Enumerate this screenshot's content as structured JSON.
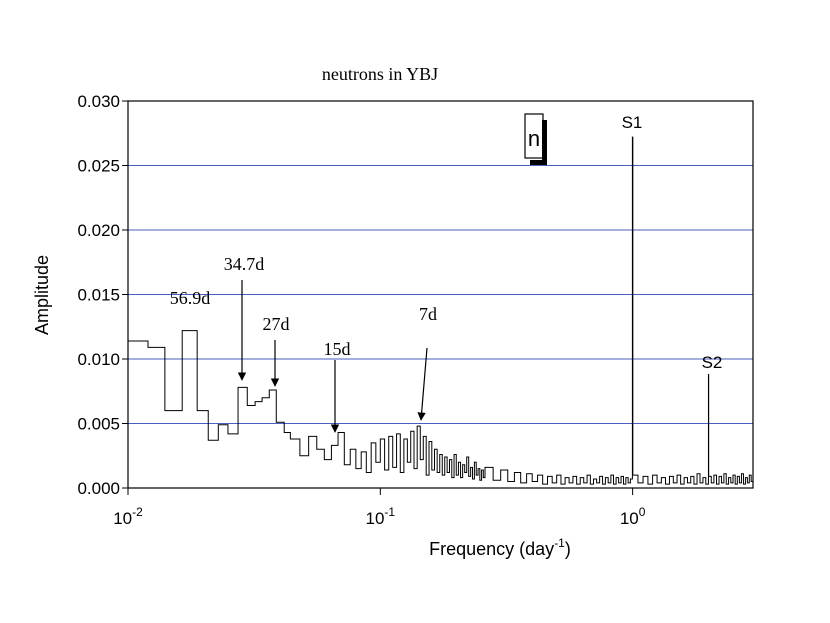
{
  "chart_data": {
    "type": "line",
    "drawstyle": "steps-post",
    "title": "neutrons in YBJ",
    "ylabel": "Amplitude",
    "xlabel": {
      "text": "Frequency (day",
      "superscript": "-1",
      "suffix": ")"
    },
    "inset_label": "n",
    "xscale": "log",
    "grid": true,
    "grid_color": "#4a5fc1",
    "xlim": [
      0.01,
      3
    ],
    "ylim": [
      0,
      0.03
    ],
    "xticks": [
      {
        "value": 0.01,
        "label": "10",
        "exponent": "-2"
      },
      {
        "value": 0.1,
        "label": "10",
        "exponent": "-1"
      },
      {
        "value": 1,
        "label": "10",
        "exponent": "0"
      }
    ],
    "yticks": [
      {
        "value": 0,
        "label": "0.000"
      },
      {
        "value": 0.005,
        "label": "0.005"
      },
      {
        "value": 0.01,
        "label": "0.010"
      },
      {
        "value": 0.015,
        "label": "0.015"
      },
      {
        "value": 0.02,
        "label": "0.020"
      },
      {
        "value": 0.025,
        "label": "0.025"
      },
      {
        "value": 0.03,
        "label": "0.030"
      }
    ],
    "annotations": [
      "56.9d",
      "34.7d",
      "27d",
      "15d",
      "7d",
      "S1",
      "S2"
    ],
    "series": [
      {
        "name": "neutrons",
        "color": "#000000",
        "x": [
          0.01,
          0.012,
          0.014,
          0.0164,
          0.0188,
          0.0208,
          0.0228,
          0.0249,
          0.0273,
          0.0297,
          0.0319,
          0.034,
          0.0363,
          0.0387,
          0.0416,
          0.044,
          0.048,
          0.052,
          0.056,
          0.06,
          0.064,
          0.068,
          0.072,
          0.076,
          0.08,
          0.084,
          0.088,
          0.092,
          0.096,
          0.1,
          0.104,
          0.108,
          0.112,
          0.116,
          0.12,
          0.124,
          0.128,
          0.132,
          0.136,
          0.14,
          0.144,
          0.148,
          0.152,
          0.156,
          0.16,
          0.164,
          0.168,
          0.172,
          0.176,
          0.18,
          0.184,
          0.188,
          0.192,
          0.196,
          0.2,
          0.204,
          0.208,
          0.212,
          0.216,
          0.22,
          0.224,
          0.228,
          0.232,
          0.236,
          0.24,
          0.244,
          0.248,
          0.252,
          0.256,
          0.26,
          0.28,
          0.3,
          0.32,
          0.34,
          0.36,
          0.38,
          0.4,
          0.42,
          0.44,
          0.46,
          0.48,
          0.5,
          0.52,
          0.54,
          0.56,
          0.58,
          0.6,
          0.62,
          0.64,
          0.66,
          0.68,
          0.7,
          0.72,
          0.74,
          0.76,
          0.78,
          0.8,
          0.82,
          0.84,
          0.86,
          0.88,
          0.9,
          0.92,
          0.94,
          0.96,
          0.98,
          0.998,
          1.002,
          1.05,
          1.1,
          1.15,
          1.2,
          1.25,
          1.3,
          1.35,
          1.4,
          1.45,
          1.5,
          1.55,
          1.6,
          1.65,
          1.7,
          1.75,
          1.8,
          1.85,
          1.9,
          1.95,
          1.998,
          2.002,
          2.05,
          2.1,
          2.15,
          2.2,
          2.25,
          2.3,
          2.35,
          2.4,
          2.45,
          2.5,
          2.55,
          2.6,
          2.65,
          2.7,
          2.75,
          2.8,
          2.85,
          2.9,
          2.95
        ],
        "values": [
          0.0114,
          0.0109,
          0.006,
          0.0122,
          0.006,
          0.0037,
          0.0049,
          0.0042,
          0.0078,
          0.0064,
          0.0067,
          0.007,
          0.0076,
          0.0051,
          0.0043,
          0.0038,
          0.0025,
          0.004,
          0.003,
          0.0022,
          0.0033,
          0.0043,
          0.0018,
          0.003,
          0.0015,
          0.0028,
          0.0012,
          0.0035,
          0.002,
          0.0038,
          0.0014,
          0.004,
          0.0016,
          0.0042,
          0.0012,
          0.0038,
          0.002,
          0.0044,
          0.0015,
          0.0048,
          0.0022,
          0.004,
          0.001,
          0.0036,
          0.0014,
          0.003,
          0.0012,
          0.0026,
          0.001,
          0.0024,
          0.0012,
          0.0022,
          0.0008,
          0.0026,
          0.001,
          0.002,
          0.0008,
          0.0018,
          0.0012,
          0.0024,
          0.0009,
          0.0016,
          0.0007,
          0.002,
          0.001,
          0.0015,
          0.0006,
          0.0014,
          0.0008,
          0.0016,
          0.0006,
          0.0014,
          0.0005,
          0.0012,
          0.0004,
          0.0011,
          0.0005,
          0.001,
          0.0003,
          0.0009,
          0.0004,
          0.001,
          0.0003,
          0.0008,
          0.0004,
          0.0009,
          0.0003,
          0.0008,
          0.0004,
          0.001,
          0.0003,
          0.0007,
          0.0004,
          0.0009,
          0.0003,
          0.0008,
          0.0004,
          0.001,
          0.0003,
          0.0008,
          0.0004,
          0.0009,
          0.0003,
          0.0008,
          0.0004,
          0.0007,
          0.0272,
          0.001,
          0.0004,
          0.0009,
          0.0003,
          0.001,
          0.0004,
          0.0008,
          0.0003,
          0.0009,
          0.0004,
          0.001,
          0.0003,
          0.0008,
          0.0004,
          0.0009,
          0.0003,
          0.0011,
          0.0004,
          0.0008,
          0.0003,
          0.0088,
          0.0009,
          0.0004,
          0.001,
          0.0003,
          0.0009,
          0.0004,
          0.0011,
          0.0003,
          0.0008,
          0.0004,
          0.001,
          0.0003,
          0.0009,
          0.0004,
          0.0011,
          0.0003,
          0.0008,
          0.0004,
          0.001,
          0.0005
        ]
      }
    ]
  }
}
